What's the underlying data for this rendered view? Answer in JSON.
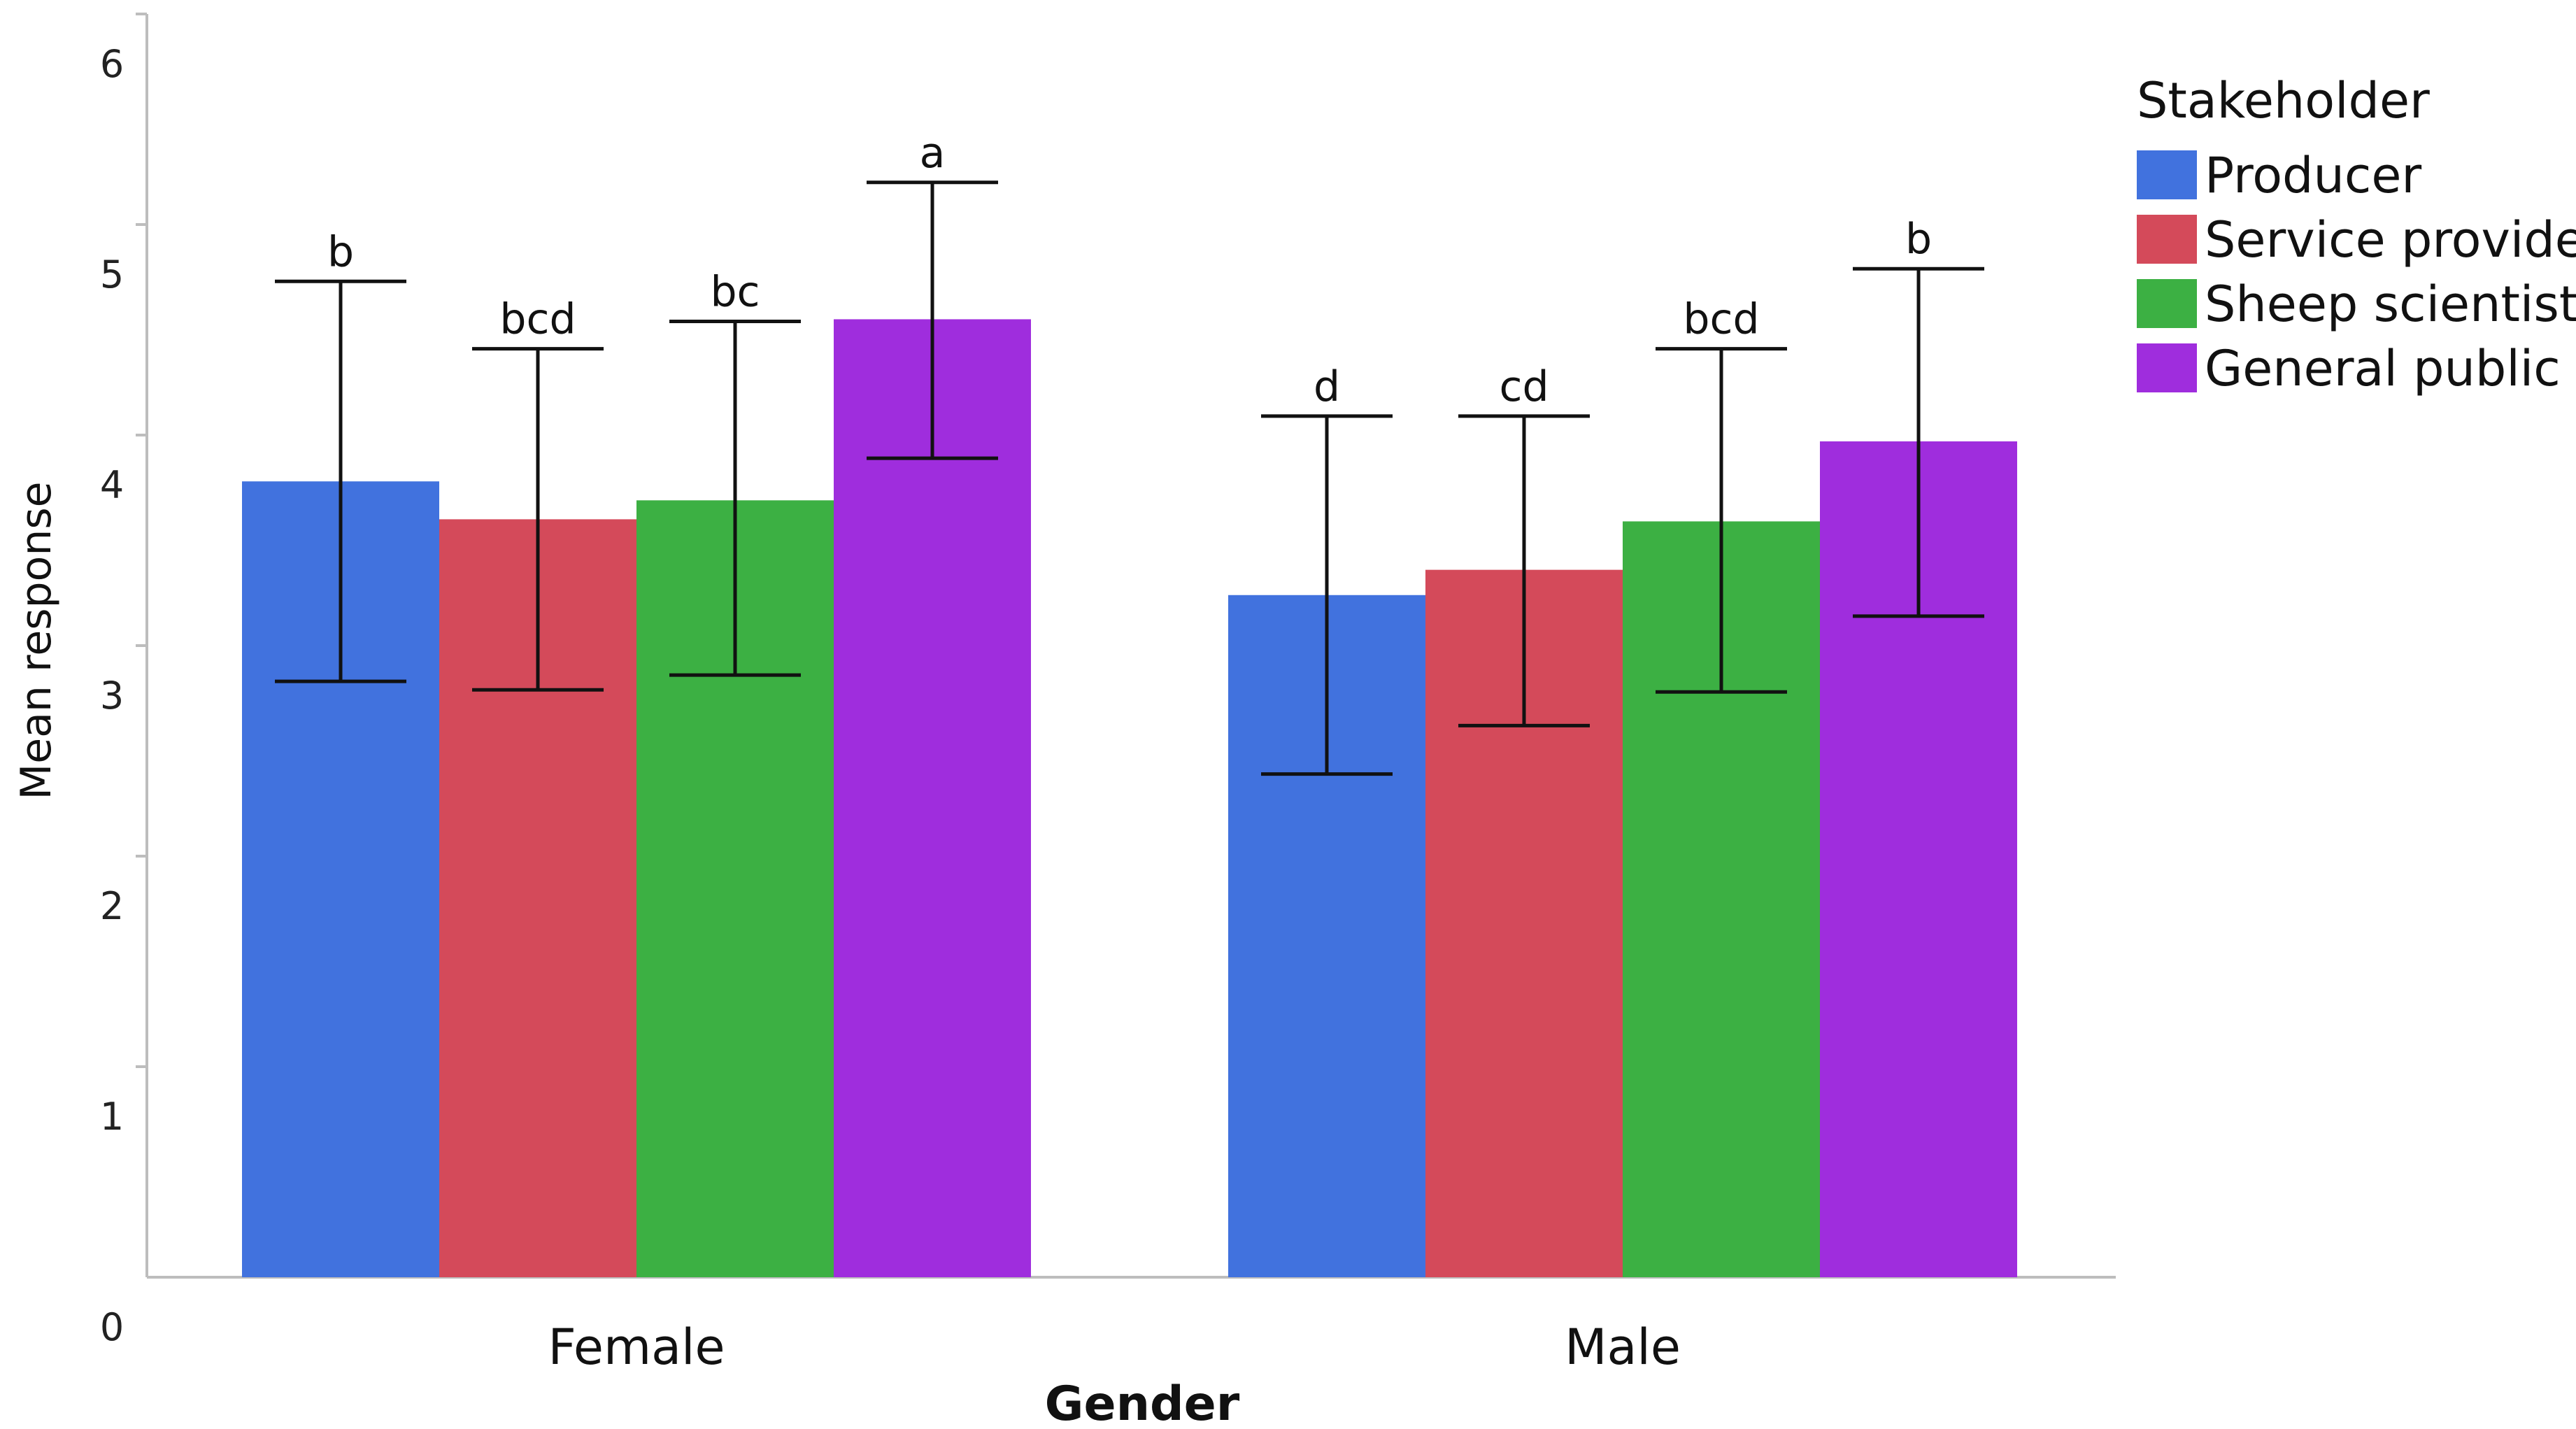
{
  "chart_data": {
    "type": "bar",
    "title": "",
    "xlabel": "Gender",
    "ylabel": "Mean response",
    "categories": [
      "Female",
      "Male"
    ],
    "ylim": [
      0,
      6
    ],
    "yticks": [
      0,
      1,
      2,
      3,
      4,
      5,
      6
    ],
    "grid": false,
    "legend": {
      "title": "Stakeholder",
      "position": "top-right"
    },
    "series": [
      {
        "name": "Producer",
        "color": "#4172de",
        "values": [
          3.78,
          3.24
        ],
        "error_low": [
          2.83,
          2.39
        ],
        "error_high": [
          4.73,
          4.09
        ],
        "sig_labels": [
          "b",
          "d"
        ]
      },
      {
        "name": "Service provider",
        "color": "#d44a5a",
        "values": [
          3.6,
          3.36
        ],
        "error_low": [
          2.79,
          2.62
        ],
        "error_high": [
          4.41,
          4.09
        ],
        "sig_labels": [
          "bcd",
          "cd"
        ]
      },
      {
        "name": "Sheep scientist",
        "color": "#3cb043",
        "values": [
          3.69,
          3.59
        ],
        "error_low": [
          2.86,
          2.78
        ],
        "error_high": [
          4.54,
          4.41
        ],
        "sig_labels": [
          "bc",
          "bcd"
        ]
      },
      {
        "name": "General public",
        "color": "#9f2ddd",
        "values": [
          4.55,
          3.97
        ],
        "error_low": [
          3.89,
          3.14
        ],
        "error_high": [
          5.2,
          4.79
        ],
        "sig_labels": [
          "a",
          "b"
        ]
      }
    ]
  }
}
